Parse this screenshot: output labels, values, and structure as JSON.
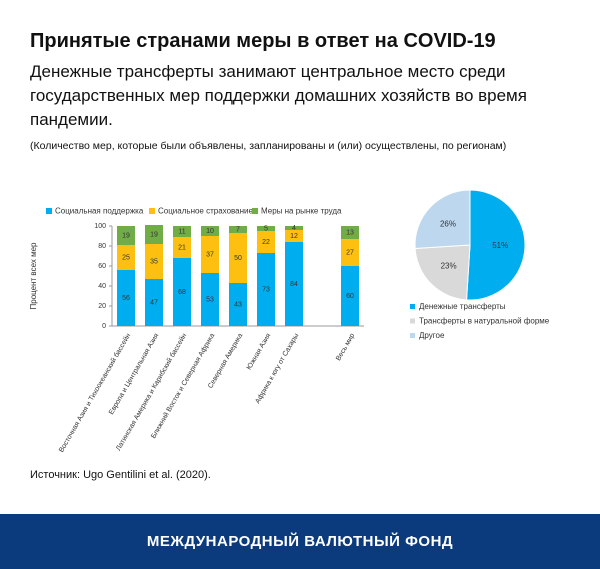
{
  "header": {
    "title": "Принятые странами меры в ответ на COVID-19",
    "subtitle": "Денежные трансферты занимают центральное место среди государственных мер поддержки домашних хозяйств во время пандемии.",
    "note": "(Количество мер, которые были объявлены, запланированы и (или) осуществлены, по регионам)"
  },
  "chart_data": [
    {
      "type": "stacked-bar",
      "y_label": "Процент всех мер",
      "categories": [
        "Восточная Азия и Тихоокеанский бассейн",
        "Европа и Центральная Азия",
        "Латинская Америка и Карибский бассейн",
        "Ближний Восток и Северная Африка",
        "Северная Америка",
        "Южная Азия",
        "Африка к югу от Сахары",
        null,
        "Весь мир"
      ],
      "series": [
        {
          "name": "Социальная поддержка",
          "color": "#00aeef",
          "values": [
            56,
            47,
            68,
            53,
            43,
            73,
            84,
            null,
            60
          ]
        },
        {
          "name": "Социальное страхование",
          "color": "#fdc010",
          "values": [
            25,
            35,
            21,
            37,
            50,
            22,
            12,
            null,
            27
          ]
        },
        {
          "name": "Меры на рынке труда",
          "color": "#70ad47",
          "values": [
            19,
            19,
            11,
            10,
            7,
            5,
            4,
            null,
            13
          ]
        }
      ],
      "ylim": [
        0,
        100
      ],
      "yticks": [
        0,
        20,
        40,
        60,
        80,
        100
      ]
    },
    {
      "type": "pie",
      "categories": [
        "Денежные трансферты",
        "Трансферты в натуральной форме",
        "Другое"
      ],
      "values": [
        51,
        23,
        26
      ],
      "value_labels": [
        "51%",
        "23%",
        "26%"
      ],
      "colors": [
        "#00aeef",
        "#d9d9d9",
        "#bdd7ee"
      ]
    }
  ],
  "source": "Источник: Ugo Gentilini et al. (2020).",
  "footer": "МЕЖДУНАРОДНЫЙ ВАЛЮТНЫЙ ФОНД"
}
